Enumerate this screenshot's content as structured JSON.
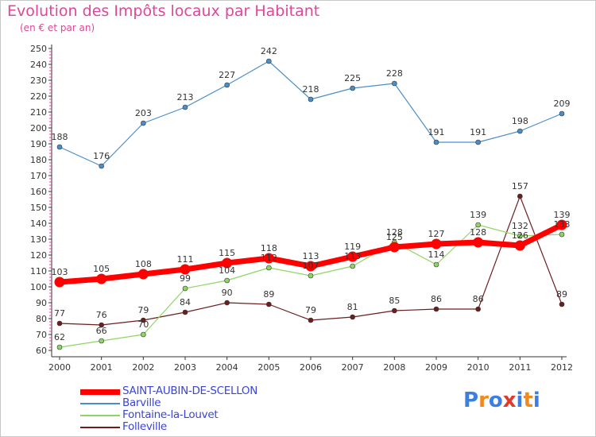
{
  "title": "Evolution des Impôts locaux par Habitant",
  "subtitle": "(en € et par an)",
  "logo": {
    "letters": [
      "P",
      "r",
      "o",
      "x",
      "i",
      "t",
      "i"
    ],
    "colors": [
      "#3c7fe0",
      "#f08a1c",
      "#3c7fe0",
      "#e03a2c",
      "#3c7fe0",
      "#f08a1c",
      "#3c7fe0"
    ]
  },
  "chart_data": {
    "type": "line",
    "title": "Evolution des Impôts locaux par Habitant",
    "subtitle": "(en € et par an)",
    "x": [
      "2000",
      "2001",
      "2002",
      "2003",
      "2004",
      "2005",
      "2006",
      "2007",
      "2008",
      "2009",
      "2010",
      "2011",
      "2012"
    ],
    "ylim": [
      60,
      250
    ],
    "ytick_step": 10,
    "grid": false,
    "legend_position": "bottom-left",
    "series": [
      {
        "name": "SAINT-AUBIN-DE-SCELLON",
        "color": "#ff0000",
        "values": [
          103,
          105,
          108,
          111,
          115,
          118,
          113,
          119,
          125,
          127,
          128,
          126,
          139
        ],
        "labels": [
          "103",
          "105",
          "108",
          "111",
          "115",
          "118",
          "113",
          "119",
          "125",
          "127",
          "128",
          "126",
          "139"
        ]
      },
      {
        "name": "Barville",
        "color": "#4a8ec9",
        "values": [
          188,
          176,
          203,
          213,
          227,
          242,
          218,
          225,
          228,
          191,
          191,
          198,
          209
        ],
        "labels": [
          "188",
          "176",
          "203",
          "213",
          "227",
          "242",
          "218",
          "225",
          "228",
          "191",
          "191",
          "198",
          "209"
        ]
      },
      {
        "name": "Fontaine-la-Louvet",
        "color": "#8ed663",
        "values": [
          62,
          66,
          70,
          99,
          104,
          112,
          107,
          113,
          128,
          114,
          139,
          132,
          133
        ],
        "labels": [
          "62",
          "66",
          "70",
          "99",
          "104",
          "112",
          "107",
          "113",
          "128",
          "114",
          "139",
          "132",
          "133"
        ]
      },
      {
        "name": "Folleville",
        "color": "#6b1e1e",
        "values": [
          77,
          76,
          79,
          84,
          90,
          89,
          79,
          81,
          85,
          86,
          86,
          157,
          89
        ],
        "labels": [
          "77",
          "76",
          "79",
          "84",
          "90",
          "89",
          "79",
          "81",
          "85",
          "86",
          "86",
          "157",
          "89"
        ]
      }
    ]
  }
}
